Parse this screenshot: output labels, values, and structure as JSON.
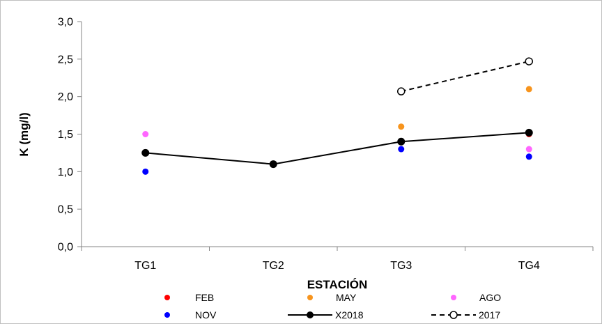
{
  "chart_data": {
    "type": "scatter",
    "title": "",
    "xlabel": "ESTACIÓN",
    "ylabel": "K (mg/l)",
    "categories": [
      "TG1",
      "TG2",
      "TG3",
      "TG4"
    ],
    "ylim": [
      0,
      3
    ],
    "yticks": [
      "0,0",
      "0,5",
      "1,0",
      "1,5",
      "2,0",
      "2,5",
      "3,0"
    ],
    "ytick_values": [
      0,
      0.5,
      1.0,
      1.5,
      2.0,
      2.5,
      3.0
    ],
    "grid": false,
    "legend_position": "bottom",
    "series": [
      {
        "name": "FEB",
        "style": "dot",
        "color": "#ff0000",
        "values": [
          1.25,
          1.1,
          1.4,
          1.5
        ]
      },
      {
        "name": "MAY",
        "style": "dot",
        "color": "#f7941d",
        "values": [
          null,
          null,
          1.6,
          2.1
        ]
      },
      {
        "name": "AGO",
        "style": "dot",
        "color": "#ff66ff",
        "values": [
          1.5,
          null,
          1.4,
          1.3
        ]
      },
      {
        "name": "NOV",
        "style": "dot",
        "color": "#0000ff",
        "values": [
          1.0,
          1.1,
          1.3,
          1.2
        ]
      },
      {
        "name": "X2018",
        "style": "solid-line",
        "color": "#000000",
        "values": [
          1.25,
          1.1,
          1.4,
          1.52
        ]
      },
      {
        "name": "2017",
        "style": "dashed-line-open",
        "color": "#000000",
        "values": [
          null,
          null,
          2.07,
          2.47
        ]
      }
    ]
  }
}
